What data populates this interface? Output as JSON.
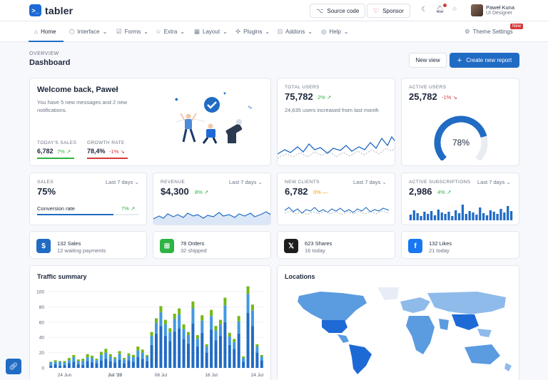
{
  "app": {
    "brand": "tabler"
  },
  "topbar": {
    "source_code": "Source code",
    "sponsor": "Sponsor",
    "user_name": "Paweł Kuna",
    "user_role": "UI Designer"
  },
  "nav": {
    "items": [
      "Home",
      "Interface",
      "Forms",
      "Extra",
      "Layout",
      "Plugins",
      "Addons",
      "Help"
    ],
    "theme_settings": "Theme Settings",
    "new_badge": "New"
  },
  "header": {
    "pretitle": "OVERVIEW",
    "title": "Dashboard",
    "new_view": "New view",
    "create_report": "Create new report"
  },
  "welcome": {
    "title": "Welcome back, Paweł",
    "text": "You have 5 new messages and 2 new notifications.",
    "todays_sales_label": "TODAY'S SALES",
    "todays_sales_value": "6,782",
    "todays_sales_delta": "7%",
    "growth_rate_label": "GROWTH RATE",
    "growth_rate_value": "78,4%",
    "growth_rate_delta": "-1%"
  },
  "total_users": {
    "label": "TOTAL USERS",
    "value": "75,782",
    "delta": "2%",
    "note": "24,635 users increased from last month"
  },
  "active_users": {
    "label": "ACTIVE USERS",
    "value": "25,782",
    "delta": "-1%",
    "gauge_text": "78%",
    "gauge_value": 78
  },
  "sales": {
    "label": "SALES",
    "period": "Last 7 days",
    "value": "75%",
    "conversion_label": "Conversion rate",
    "conversion_delta": "7%",
    "conversion_value": 75
  },
  "revenue": {
    "label": "REVENUE",
    "period": "Last 7 days",
    "value": "$4,300",
    "delta": "8%"
  },
  "new_clients": {
    "label": "NEW CLIENTS",
    "period": "Last 7 days",
    "value": "6,782",
    "delta": "0%"
  },
  "active_subscriptions": {
    "label": "ACTIVE SUBSCRIPTIONS",
    "period": "Last 7 days",
    "value": "2,986",
    "delta": "4%"
  },
  "tiles": [
    {
      "main": "132 Sales",
      "sub": "12 waiting payments",
      "color": "#206bc4",
      "icon": "dollar-icon",
      "glyph": "$"
    },
    {
      "main": "78 Orders",
      "sub": "32 shipped",
      "color": "#2fb344",
      "icon": "cart-icon",
      "glyph": "⊞"
    },
    {
      "main": "623 Shares",
      "sub": "16 today",
      "color": "#1d1d1d",
      "icon": "x-brand-icon",
      "glyph": "𝕏"
    },
    {
      "main": "132 Likes",
      "sub": "21 today",
      "color": "#1877f2",
      "icon": "facebook-icon",
      "glyph": "f"
    }
  ],
  "traffic": {
    "title": "Traffic summary"
  },
  "locations": {
    "title": "Locations"
  },
  "chart_data": {
    "type": "bar",
    "title": "Traffic summary",
    "stacked": true,
    "ylim": [
      0,
      100
    ],
    "y_ticks": [
      "0",
      "20",
      "40",
      "60",
      "80",
      "100"
    ],
    "x_tick_labels": [
      "24 Jun",
      "Jul '20",
      "08 Jul",
      "16 Jul",
      "24 Jul"
    ],
    "series": [
      {
        "color": "#206bc4",
        "values": [
          3,
          5,
          3,
          4,
          6,
          8,
          5,
          4,
          9,
          7,
          6,
          10,
          12,
          9,
          7,
          11,
          6,
          10,
          8,
          14,
          12,
          9,
          30,
          45,
          55,
          42,
          35,
          48,
          52,
          38,
          32,
          58,
          28,
          46,
          20,
          50,
          36,
          42,
          60,
          30,
          25,
          45,
          8,
          72,
          55,
          20,
          10
        ]
      },
      {
        "color": "#4299e1",
        "values": [
          4,
          3,
          5,
          3,
          4,
          6,
          4,
          5,
          5,
          6,
          4,
          7,
          8,
          6,
          5,
          7,
          5,
          6,
          6,
          9,
          8,
          6,
          12,
          14,
          18,
          15,
          12,
          16,
          18,
          13,
          11,
          20,
          10,
          16,
          8,
          18,
          13,
          15,
          22,
          11,
          9,
          16,
          5,
          25,
          20,
          8,
          5
        ]
      },
      {
        "color": "#74b816",
        "values": [
          1,
          2,
          1,
          2,
          3,
          3,
          2,
          3,
          4,
          3,
          2,
          4,
          5,
          3,
          2,
          4,
          2,
          3,
          3,
          5,
          4,
          2,
          5,
          6,
          8,
          6,
          5,
          7,
          8,
          6,
          4,
          9,
          5,
          7,
          3,
          8,
          6,
          6,
          10,
          5,
          4,
          7,
          2,
          10,
          8,
          3,
          2
        ]
      }
    ]
  }
}
